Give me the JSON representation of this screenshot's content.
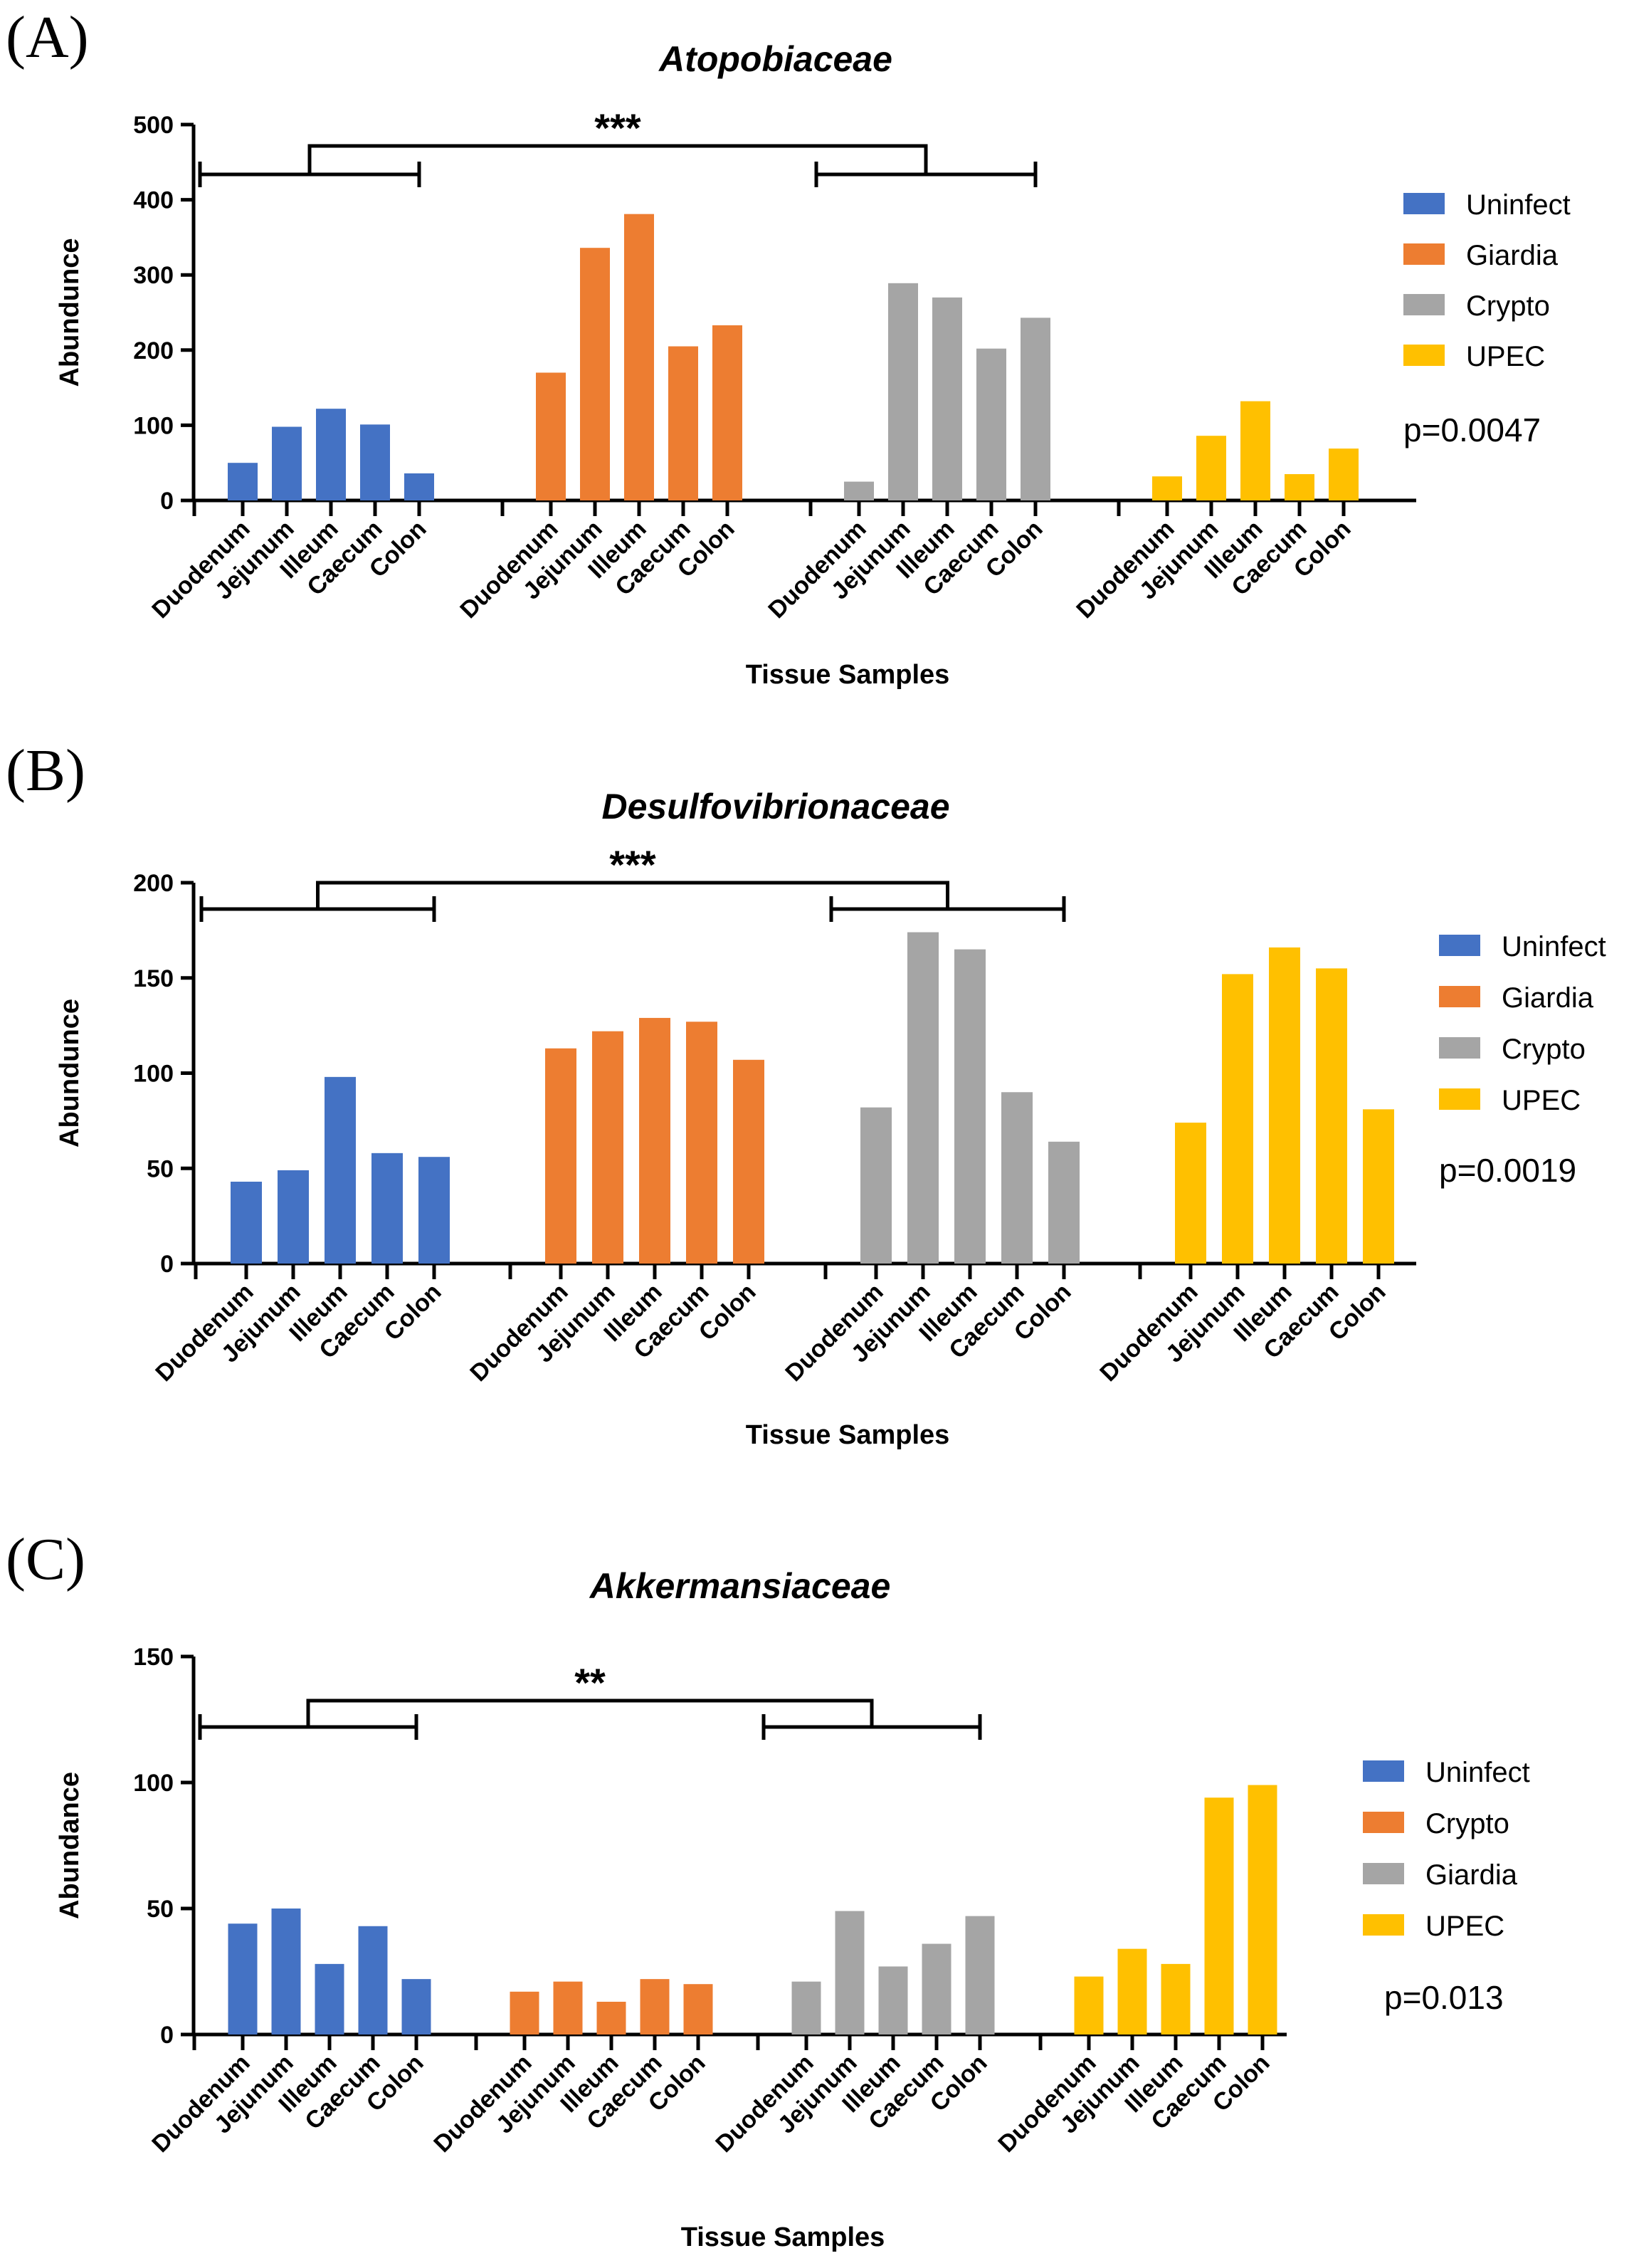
{
  "chart_data": [
    {
      "panel": "(A)",
      "type": "bar",
      "title": "Atopobiaceae",
      "xlabel": "Tissue Samples",
      "ylabel": "Abundunce",
      "ylim": [
        0,
        500
      ],
      "yticks": [
        0,
        100,
        200,
        300,
        400,
        500
      ],
      "categories": [
        "Duodenum",
        "Jejunum",
        "Illeum",
        "Caecum",
        "Colon"
      ],
      "series": [
        {
          "name": "Uninfect",
          "color": "#4472C4",
          "values": [
            50,
            98,
            122,
            101,
            36
          ]
        },
        {
          "name": "Giardia",
          "color": "#ED7D31",
          "values": [
            170,
            336,
            381,
            205,
            233
          ]
        },
        {
          "name": "Crypto",
          "color": "#A5A5A5",
          "values": [
            25,
            289,
            270,
            202,
            243
          ]
        },
        {
          "name": "UPEC",
          "color": "#FFC000",
          "values": [
            32,
            86,
            132,
            35,
            69
          ]
        }
      ],
      "significance": "***",
      "pvalue": "p=0.0047",
      "bracket": {
        "left_group": "Uninfect",
        "right_group": "Crypto",
        "left_level": 432,
        "right_level": 431,
        "top_level": 468
      }
    },
    {
      "panel": "(B)",
      "type": "bar",
      "title": "Desulfovibrionaceae",
      "xlabel": "Tissue Samples",
      "ylabel": "Abundunce",
      "ylim": [
        0,
        200
      ],
      "yticks": [
        0,
        50,
        100,
        150,
        200
      ],
      "categories": [
        "Duodenum",
        "Jejunum",
        "Illeum",
        "Caecum",
        "Colon"
      ],
      "series": [
        {
          "name": "Uninfect",
          "color": "#4472C4",
          "values": [
            43,
            49,
            98,
            58,
            56
          ]
        },
        {
          "name": "Giardia",
          "color": "#ED7D31",
          "values": [
            113,
            122,
            129,
            127,
            107
          ]
        },
        {
          "name": "Crypto",
          "color": "#A5A5A5",
          "values": [
            82,
            174,
            165,
            90,
            64
          ]
        },
        {
          "name": "UPEC",
          "color": "#FFC000",
          "values": [
            74,
            152,
            166,
            155,
            81
          ]
        }
      ],
      "significance": "***",
      "pvalue": "p=0.0019",
      "bracket": {
        "left_group": "Uninfect",
        "right_group": "Crypto",
        "left_level": 188,
        "right_level": 188,
        "top_level": 202
      }
    },
    {
      "panel": "(C)",
      "type": "bar",
      "title": "Akkermansiaceae",
      "xlabel": "Tissue Samples",
      "ylabel": "Abundance",
      "ylim": [
        0,
        150
      ],
      "yticks": [
        0,
        50,
        100,
        150
      ],
      "categories": [
        "Duodenum",
        "Jejunum",
        "Illeum",
        "Caecum",
        "Colon"
      ],
      "series": [
        {
          "name": "Uninfect",
          "color": "#4472C4",
          "values": [
            44,
            50,
            28,
            43,
            22
          ]
        },
        {
          "name": "Crypto",
          "color": "#ED7D31",
          "values": [
            17,
            21,
            13,
            22,
            20
          ]
        },
        {
          "name": "Giardia",
          "color": "#A5A5A5",
          "values": [
            21,
            49,
            27,
            36,
            47
          ]
        },
        {
          "name": "UPEC",
          "color": "#FFC000",
          "values": [
            23,
            34,
            28,
            94,
            99
          ]
        }
      ],
      "significance": "**",
      "pvalue": "p=0.013",
      "bracket": {
        "left_group": "Uninfect",
        "right_group": "Giardia",
        "left_level": 121,
        "right_level": 121,
        "top_level": 131
      }
    }
  ]
}
